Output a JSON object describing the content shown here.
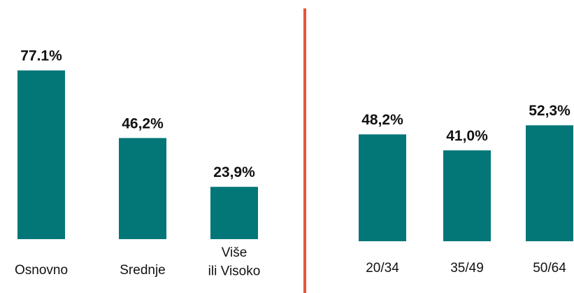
{
  "chart_data": [
    {
      "type": "bar",
      "categories": [
        "Osnovno",
        "Srednje",
        "Više\nili Visoko"
      ],
      "values": [
        77.1,
        46.2,
        23.9
      ],
      "value_labels": [
        "77.1%",
        "46,2%",
        "23,9%"
      ],
      "color": "#037677"
    },
    {
      "type": "bar",
      "categories": [
        "20/34",
        "35/49",
        "50/64"
      ],
      "values": [
        48.2,
        41.0,
        52.3
      ],
      "value_labels": [
        "48,2%",
        "41,0%",
        "52,3%"
      ],
      "color": "#037677"
    }
  ]
}
